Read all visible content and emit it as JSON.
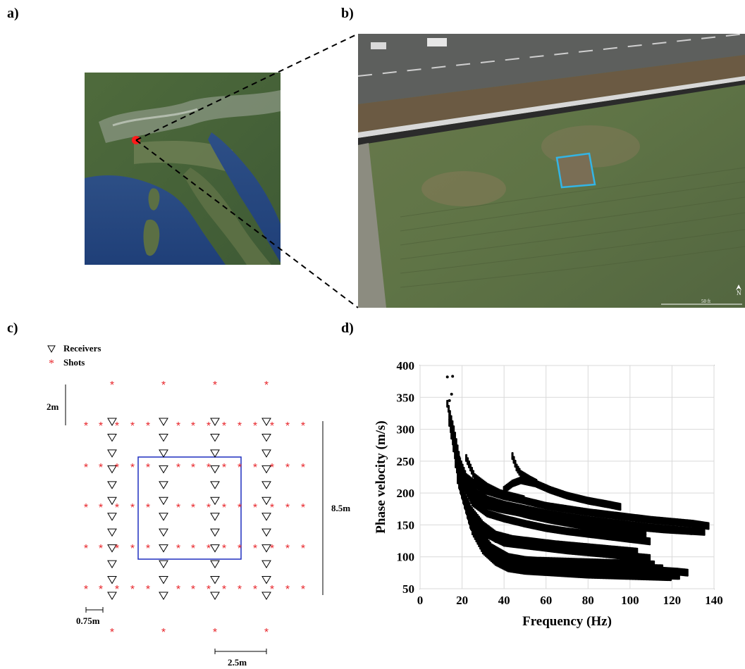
{
  "panels": {
    "a": "a)",
    "b": "b)",
    "c": "c)",
    "d": "d)"
  },
  "map_panel": {
    "marker_color": "#ff1a1a"
  },
  "aerial_panel": {
    "scale_text": "50 ft",
    "north_text": "N",
    "area_box_color": "#33b5e5"
  },
  "layout_panel": {
    "legend": {
      "receivers": "Receivers",
      "shots": "Shots"
    },
    "dims": {
      "shot_spacing": "2m",
      "array_length": "8.5m",
      "receiver_spacing": "0.75m",
      "line_spacing": "2.5m"
    },
    "shot_color": "#e8262b",
    "box_color": "#1f2fbf"
  },
  "chart_data": {
    "type": "scatter",
    "xlabel": "Frequency (Hz)",
    "ylabel": "Phase velocity (m/s)",
    "xlim": [
      0,
      140
    ],
    "ylim": [
      50,
      400
    ],
    "xticks": [
      0,
      20,
      40,
      60,
      80,
      100,
      120,
      140
    ],
    "yticks": [
      50,
      100,
      150,
      200,
      250,
      300,
      350,
      400
    ],
    "grid": true,
    "marker_color": "#000000",
    "curves": [
      {
        "x": [
          13,
          16,
          19,
          22,
          26,
          30,
          35,
          40,
          50,
          60,
          70,
          80,
          90,
          100,
          110,
          120,
          130,
          138
        ],
        "y": [
          340,
          300,
          250,
          225,
          215,
          205,
          200,
          195,
          188,
          180,
          175,
          170,
          166,
          162,
          158,
          155,
          152,
          148
        ]
      },
      {
        "x": [
          14,
          18,
          22,
          27,
          32,
          40,
          50,
          60,
          70,
          80,
          90,
          100,
          110,
          120,
          130
        ],
        "y": [
          320,
          260,
          215,
          200,
          190,
          182,
          175,
          168,
          163,
          158,
          154,
          150,
          146,
          143,
          140
        ]
      },
      {
        "x": [
          14,
          18,
          22,
          26,
          30,
          38,
          46,
          56,
          66,
          76,
          86,
          96,
          106,
          116,
          126,
          136
        ],
        "y": [
          310,
          250,
          210,
          190,
          182,
          175,
          170,
          165,
          160,
          156,
          152,
          149,
          146,
          143,
          141,
          139
        ]
      },
      {
        "x": [
          15,
          20,
          25,
          30,
          40,
          50,
          60,
          70,
          80,
          90,
          100,
          108
        ],
        "y": [
          300,
          225,
          195,
          185,
          178,
          170,
          164,
          158,
          152,
          146,
          142,
          140
        ]
      },
      {
        "x": [
          15,
          19,
          24,
          30,
          36,
          44,
          52,
          62,
          72,
          82,
          92,
          102,
          108
        ],
        "y": [
          290,
          235,
          205,
          190,
          180,
          172,
          165,
          158,
          152,
          146,
          140,
          135,
          130
        ]
      },
      {
        "x": [
          16,
          20,
          25,
          32,
          40,
          50,
          60,
          70,
          80,
          90,
          100,
          110
        ],
        "y": [
          280,
          215,
          185,
          168,
          160,
          152,
          145,
          140,
          136,
          132,
          128,
          124
        ]
      },
      {
        "x": [
          16,
          20,
          24,
          30,
          36,
          44,
          54,
          64,
          74,
          84,
          94,
          104
        ],
        "y": [
          270,
          205,
          175,
          150,
          135,
          128,
          124,
          120,
          117,
          114,
          111,
          108
        ]
      },
      {
        "x": [
          17,
          21,
          26,
          32,
          40,
          50,
          60,
          70,
          80,
          90,
          100,
          110
        ],
        "y": [
          255,
          195,
          160,
          135,
          122,
          118,
          114,
          110,
          107,
          104,
          101,
          98
        ]
      },
      {
        "x": [
          17,
          22,
          28,
          34,
          42,
          52,
          62,
          72,
          82,
          92,
          102,
          112,
          122,
          128
        ],
        "y": [
          245,
          180,
          140,
          115,
          100,
          94,
          90,
          87,
          85,
          83,
          81,
          79,
          77,
          75
        ]
      },
      {
        "x": [
          18,
          23,
          28,
          35,
          42,
          50,
          60,
          70,
          80,
          90,
          100,
          110,
          118
        ],
        "y": [
          230,
          165,
          128,
          105,
          92,
          88,
          85,
          83,
          81,
          79,
          77,
          75,
          73
        ]
      },
      {
        "x": [
          18,
          24,
          30,
          36,
          44,
          54,
          64,
          74,
          84,
          94,
          104,
          114,
          124
        ],
        "y": [
          220,
          150,
          118,
          98,
          86,
          82,
          79,
          77,
          75,
          74,
          72,
          71,
          70
        ]
      },
      {
        "x": [
          19,
          25,
          30,
          36,
          42,
          50,
          60,
          70,
          80,
          90,
          100,
          110,
          120
        ],
        "y": [
          210,
          140,
          110,
          92,
          82,
          78,
          76,
          74,
          72,
          71,
          70,
          69,
          68
        ]
      },
      {
        "x": [
          20,
          25,
          31,
          38,
          46,
          56,
          66,
          76,
          86,
          96,
          106,
          116
        ],
        "y": [
          200,
          148,
          120,
          102,
          94,
          90,
          88,
          86,
          85,
          84,
          83,
          82
        ]
      },
      {
        "x": [
          21,
          26,
          32,
          38,
          46,
          56,
          66,
          76,
          86,
          96,
          106,
          112
        ],
        "y": [
          190,
          140,
          112,
          100,
          96,
          94,
          93,
          92,
          91,
          90,
          89,
          88
        ]
      },
      {
        "x": [
          30,
          36,
          42,
          50,
          60,
          70,
          80,
          90,
          100,
          106
        ],
        "y": [
          140,
          128,
          124,
          120,
          116,
          112,
          108,
          104,
          100,
          98
        ]
      },
      {
        "x": [
          40,
          44,
          48,
          55,
          62,
          70,
          80,
          90,
          96
        ],
        "y": [
          205,
          215,
          220,
          215,
          205,
          196,
          188,
          182,
          178
        ]
      },
      {
        "x": [
          44,
          46,
          48,
          52,
          56
        ],
        "y": [
          258,
          240,
          230,
          222,
          215
        ]
      },
      {
        "x": [
          22,
          26,
          32,
          38,
          44,
          50
        ],
        "y": [
          255,
          225,
          210,
          200,
          195,
          190
        ]
      }
    ]
  }
}
